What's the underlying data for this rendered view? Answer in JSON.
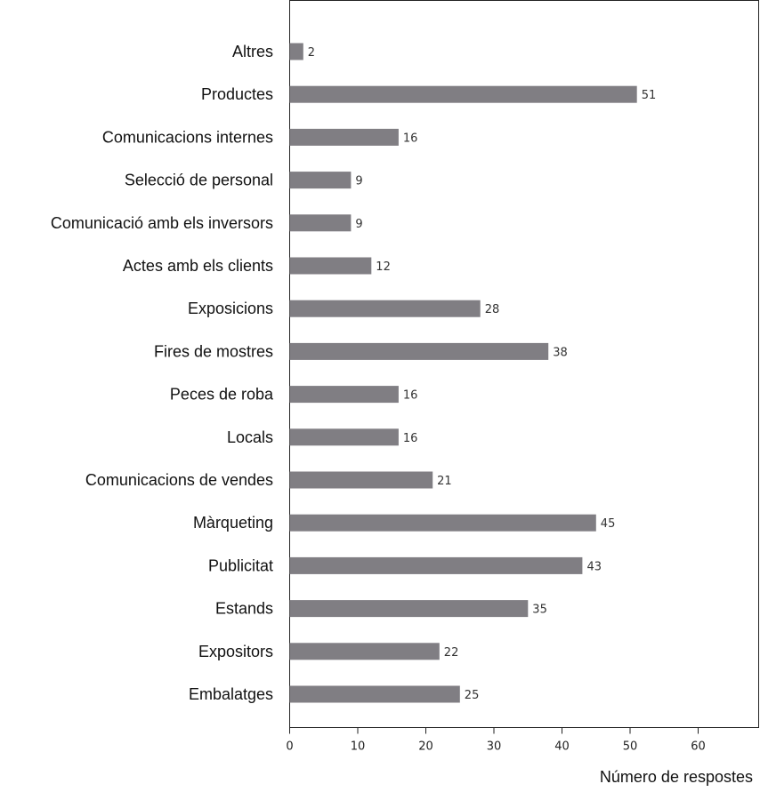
{
  "chart_data": {
    "type": "bar",
    "orientation": "horizontal",
    "categories": [
      "Altres",
      "Productes",
      "Comunicacions internes",
      "Selecció de personal",
      "Comunicació amb els inversors",
      "Actes amb els clients",
      "Exposicions",
      "Fires de mostres",
      "Peces de roba",
      "Locals",
      "Comunicacions de vendes",
      "Màrqueting",
      "Publicitat",
      "Estands",
      "Expositors",
      "Embalatges"
    ],
    "values": [
      2,
      51,
      16,
      9,
      9,
      12,
      28,
      38,
      16,
      16,
      21,
      45,
      43,
      35,
      22,
      25
    ],
    "value_labels": [
      "2",
      "51",
      "16",
      "9",
      "9",
      "12",
      "28",
      "38",
      "16",
      "16",
      "21",
      "45",
      "43",
      "35",
      "22",
      "25"
    ],
    "title": "",
    "xlabel": "Número de respostes",
    "ylabel": "",
    "xlim": [
      0,
      70
    ],
    "xticks": [
      0,
      10,
      20,
      30,
      40,
      50,
      60
    ],
    "xtick_labels": [
      "0",
      "10",
      "20",
      "30",
      "40",
      "50",
      "60"
    ],
    "grid": false,
    "legend": "none",
    "bar_color": "#807e83"
  }
}
